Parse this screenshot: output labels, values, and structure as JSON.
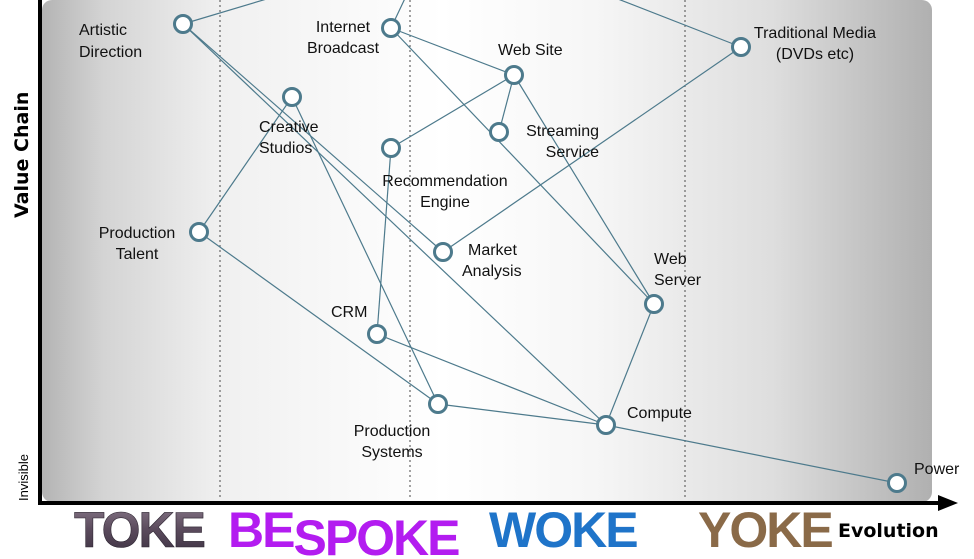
{
  "axes": {
    "y_label": "Value Chain",
    "y_bottom_label": "Invisible",
    "x_label": "Evolution"
  },
  "stages": [
    {
      "id": "toke",
      "label_a": "TOKE",
      "label_b": "",
      "color": "#6a5a6a"
    },
    {
      "id": "bespoke",
      "label_a": "BE",
      "label_b": "SPOKE",
      "color": "#b31cf0"
    },
    {
      "id": "woke",
      "label_a": "WOKE",
      "label_b": "",
      "color": "#1f74c9"
    },
    {
      "id": "yoke",
      "label_a": "YOKE",
      "label_b": "",
      "color": "#8a6a48"
    }
  ],
  "nodes": {
    "artistic_direction": [
      "Artistic",
      "Direction"
    ],
    "internet_broadcast": [
      "Internet",
      "Broadcast"
    ],
    "web_site": [
      "Web Site"
    ],
    "traditional_media": [
      "Traditional Media",
      "(DVDs etc)"
    ],
    "creative_studios": [
      "Creative",
      "Studios"
    ],
    "streaming_service": [
      "Streaming",
      "Service"
    ],
    "recommendation_engine": [
      "Recommendation",
      "Engine"
    ],
    "production_talent": [
      "Production",
      "Talent"
    ],
    "market_analysis": [
      "Market",
      "Analysis"
    ],
    "web_server": [
      "Web",
      "Server"
    ],
    "crm": [
      "CRM"
    ],
    "production_systems": [
      "Production",
      "Systems"
    ],
    "compute": [
      "Compute"
    ],
    "power": [
      "Power"
    ]
  },
  "colors": {
    "node_stroke": "#4d7a8c",
    "edge": "#4d7a8c",
    "axis": "#000000"
  }
}
